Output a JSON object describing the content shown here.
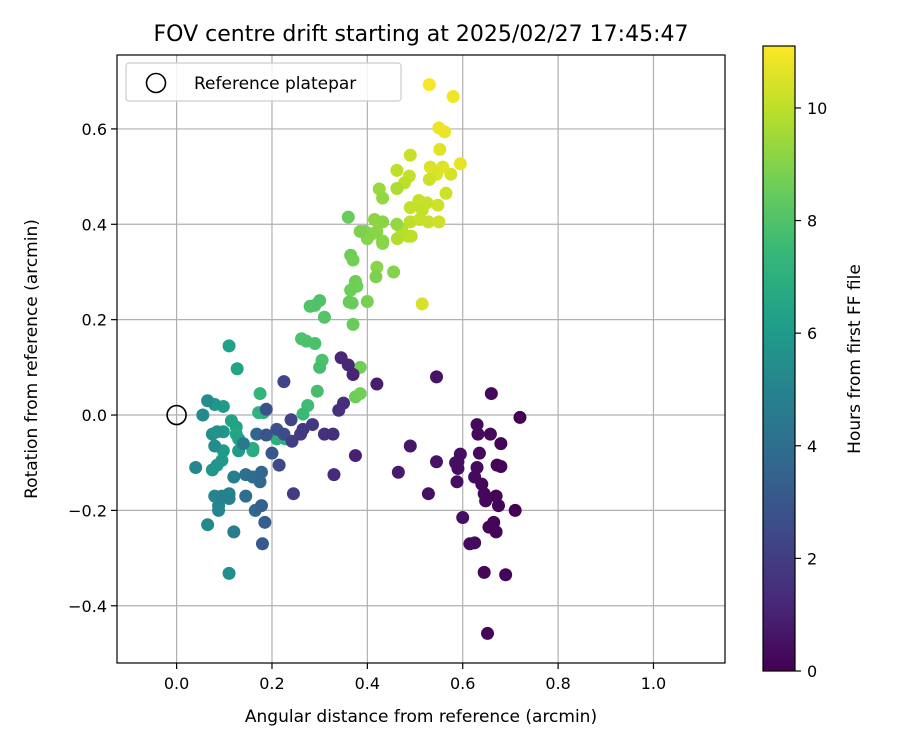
{
  "chart_data": {
    "type": "scatter",
    "title": "FOV centre drift starting at 2025/02/27 17:45:47",
    "xlabel": "Angular distance from reference (arcmin)",
    "ylabel": "Rotation from reference (arcmin)",
    "xlim": [
      -0.125,
      1.15
    ],
    "ylim": [
      -0.52,
      0.755
    ],
    "xticks": [
      0.0,
      0.2,
      0.4,
      0.6,
      0.8,
      1.0
    ],
    "xtick_labels": [
      "0.0",
      "0.2",
      "0.4",
      "0.6",
      "0.8",
      "1.0"
    ],
    "yticks": [
      -0.4,
      -0.2,
      0.0,
      0.2,
      0.4,
      0.6
    ],
    "ytick_labels": [
      "−0.4",
      "−0.2",
      "0.0",
      "0.2",
      "0.4",
      "0.6"
    ],
    "grid": true,
    "legend": {
      "position": "upper-left",
      "entries": [
        "Reference platepar"
      ]
    },
    "reference_point": {
      "x": 0.0,
      "y": 0.0,
      "marker": "open-circle"
    },
    "colorbar": {
      "label": "Hours from first FF file",
      "colormap": "viridis",
      "range": [
        0,
        11.1
      ],
      "ticks": [
        0,
        2,
        4,
        6,
        8,
        10
      ],
      "tick_labels": [
        "0",
        "2",
        "4",
        "6",
        "8",
        "10"
      ]
    },
    "points": [
      {
        "x": 0.53,
        "y": 0.693,
        "t": 11.0
      },
      {
        "x": 0.58,
        "y": 0.668,
        "t": 10.9
      },
      {
        "x": 0.55,
        "y": 0.602,
        "t": 10.8
      },
      {
        "x": 0.562,
        "y": 0.594,
        "t": 10.8
      },
      {
        "x": 0.595,
        "y": 0.527,
        "t": 10.7
      },
      {
        "x": 0.552,
        "y": 0.557,
        "t": 10.6
      },
      {
        "x": 0.532,
        "y": 0.52,
        "t": 10.5
      },
      {
        "x": 0.575,
        "y": 0.505,
        "t": 10.4
      },
      {
        "x": 0.558,
        "y": 0.52,
        "t": 10.6
      },
      {
        "x": 0.545,
        "y": 0.505,
        "t": 10.5
      },
      {
        "x": 0.53,
        "y": 0.494,
        "t": 10.3
      },
      {
        "x": 0.49,
        "y": 0.545,
        "t": 10.2
      },
      {
        "x": 0.462,
        "y": 0.513,
        "t": 10.0
      },
      {
        "x": 0.488,
        "y": 0.501,
        "t": 10.1
      },
      {
        "x": 0.478,
        "y": 0.487,
        "t": 10.0
      },
      {
        "x": 0.462,
        "y": 0.475,
        "t": 9.7
      },
      {
        "x": 0.565,
        "y": 0.465,
        "t": 10.3
      },
      {
        "x": 0.508,
        "y": 0.45,
        "t": 10.2
      },
      {
        "x": 0.525,
        "y": 0.445,
        "t": 10.2
      },
      {
        "x": 0.49,
        "y": 0.435,
        "t": 10.1
      },
      {
        "x": 0.548,
        "y": 0.44,
        "t": 10.3
      },
      {
        "x": 0.515,
        "y": 0.43,
        "t": 10.1
      },
      {
        "x": 0.49,
        "y": 0.405,
        "t": 10.0
      },
      {
        "x": 0.51,
        "y": 0.41,
        "t": 10.1
      },
      {
        "x": 0.528,
        "y": 0.405,
        "t": 10.2
      },
      {
        "x": 0.55,
        "y": 0.405,
        "t": 10.3
      },
      {
        "x": 0.485,
        "y": 0.375,
        "t": 10.0
      },
      {
        "x": 0.492,
        "y": 0.375,
        "t": 10.0
      },
      {
        "x": 0.463,
        "y": 0.37,
        "t": 9.8
      },
      {
        "x": 0.472,
        "y": 0.39,
        "t": 9.9
      },
      {
        "x": 0.515,
        "y": 0.233,
        "t": 10.4
      },
      {
        "x": 0.425,
        "y": 0.474,
        "t": 9.4
      },
      {
        "x": 0.432,
        "y": 0.455,
        "t": 9.3
      },
      {
        "x": 0.415,
        "y": 0.41,
        "t": 9.2
      },
      {
        "x": 0.432,
        "y": 0.405,
        "t": 9.1
      },
      {
        "x": 0.462,
        "y": 0.4,
        "t": 9.3
      },
      {
        "x": 0.42,
        "y": 0.385,
        "t": 9.2
      },
      {
        "x": 0.41,
        "y": 0.38,
        "t": 9.1
      },
      {
        "x": 0.395,
        "y": 0.385,
        "t": 9.0
      },
      {
        "x": 0.4,
        "y": 0.37,
        "t": 9.0
      },
      {
        "x": 0.432,
        "y": 0.365,
        "t": 9.1
      },
      {
        "x": 0.432,
        "y": 0.36,
        "t": 9.1
      },
      {
        "x": 0.42,
        "y": 0.31,
        "t": 9.1
      },
      {
        "x": 0.418,
        "y": 0.29,
        "t": 8.9
      },
      {
        "x": 0.455,
        "y": 0.3,
        "t": 9.0
      },
      {
        "x": 0.4,
        "y": 0.238,
        "t": 8.8
      },
      {
        "x": 0.385,
        "y": 0.385,
        "t": 8.9
      },
      {
        "x": 0.36,
        "y": 0.415,
        "t": 8.5
      },
      {
        "x": 0.365,
        "y": 0.335,
        "t": 8.6
      },
      {
        "x": 0.37,
        "y": 0.325,
        "t": 8.7
      },
      {
        "x": 0.375,
        "y": 0.28,
        "t": 8.6
      },
      {
        "x": 0.378,
        "y": 0.27,
        "t": 8.7
      },
      {
        "x": 0.365,
        "y": 0.262,
        "t": 8.6
      },
      {
        "x": 0.362,
        "y": 0.237,
        "t": 8.5
      },
      {
        "x": 0.368,
        "y": 0.235,
        "t": 8.5
      },
      {
        "x": 0.37,
        "y": 0.19,
        "t": 8.5
      },
      {
        "x": 0.375,
        "y": 0.038,
        "t": 8.6
      },
      {
        "x": 0.385,
        "y": 0.045,
        "t": 8.7
      },
      {
        "x": 0.385,
        "y": 0.1,
        "t": 8.7
      },
      {
        "x": 0.3,
        "y": 0.24,
        "t": 8.0
      },
      {
        "x": 0.29,
        "y": 0.23,
        "t": 8.0
      },
      {
        "x": 0.28,
        "y": 0.228,
        "t": 8.0
      },
      {
        "x": 0.31,
        "y": 0.205,
        "t": 8.1
      },
      {
        "x": 0.262,
        "y": 0.16,
        "t": 7.9
      },
      {
        "x": 0.272,
        "y": 0.155,
        "t": 7.9
      },
      {
        "x": 0.29,
        "y": 0.15,
        "t": 7.9
      },
      {
        "x": 0.305,
        "y": 0.115,
        "t": 7.9
      },
      {
        "x": 0.3,
        "y": 0.1,
        "t": 7.8
      },
      {
        "x": 0.295,
        "y": 0.05,
        "t": 7.8
      },
      {
        "x": 0.275,
        "y": 0.02,
        "t": 7.6
      },
      {
        "x": 0.265,
        "y": 0.002,
        "t": 7.5
      },
      {
        "x": 0.175,
        "y": 0.045,
        "t": 7.3
      },
      {
        "x": 0.172,
        "y": 0.005,
        "t": 7.2
      },
      {
        "x": 0.182,
        "y": 0.005,
        "t": 7.1
      },
      {
        "x": 0.22,
        "y": -0.045,
        "t": 7.0
      },
      {
        "x": 0.21,
        "y": -0.05,
        "t": 7.0
      },
      {
        "x": 0.228,
        "y": -0.05,
        "t": 7.0
      },
      {
        "x": 0.16,
        "y": -0.07,
        "t": 6.8
      },
      {
        "x": 0.16,
        "y": -0.075,
        "t": 6.8
      },
      {
        "x": 0.11,
        "y": 0.145,
        "t": 6.3
      },
      {
        "x": 0.127,
        "y": 0.097,
        "t": 6.4
      },
      {
        "x": 0.115,
        "y": -0.012,
        "t": 6.4
      },
      {
        "x": 0.125,
        "y": -0.025,
        "t": 6.4
      },
      {
        "x": 0.125,
        "y": -0.04,
        "t": 6.5
      },
      {
        "x": 0.13,
        "y": -0.05,
        "t": 6.4
      },
      {
        "x": 0.13,
        "y": -0.075,
        "t": 6.1
      },
      {
        "x": 0.098,
        "y": -0.075,
        "t": 6.1
      },
      {
        "x": 0.095,
        "y": -0.095,
        "t": 6.0
      },
      {
        "x": 0.085,
        "y": -0.105,
        "t": 5.9
      },
      {
        "x": 0.075,
        "y": -0.115,
        "t": 5.8
      },
      {
        "x": 0.098,
        "y": 0.018,
        "t": 6.1
      },
      {
        "x": 0.08,
        "y": 0.022,
        "t": 5.8
      },
      {
        "x": 0.098,
        "y": -0.035,
        "t": 5.8
      },
      {
        "x": 0.075,
        "y": -0.04,
        "t": 5.6
      },
      {
        "x": 0.085,
        "y": -0.035,
        "t": 5.7
      },
      {
        "x": 0.065,
        "y": 0.03,
        "t": 5.4
      },
      {
        "x": 0.055,
        "y": 0.0,
        "t": 5.3
      },
      {
        "x": 0.04,
        "y": -0.11,
        "t": 5.1
      },
      {
        "x": 0.08,
        "y": -0.065,
        "t": 5.4
      },
      {
        "x": 0.065,
        "y": -0.23,
        "t": 5.2
      },
      {
        "x": 0.11,
        "y": -0.332,
        "t": 5.5
      },
      {
        "x": 0.088,
        "y": -0.2,
        "t": 5.0
      },
      {
        "x": 0.088,
        "y": -0.19,
        "t": 5.0
      },
      {
        "x": 0.08,
        "y": -0.17,
        "t": 5.0
      },
      {
        "x": 0.095,
        "y": -0.17,
        "t": 4.9
      },
      {
        "x": 0.11,
        "y": -0.165,
        "t": 4.9
      },
      {
        "x": 0.11,
        "y": -0.175,
        "t": 4.9
      },
      {
        "x": 0.12,
        "y": -0.13,
        "t": 4.8
      },
      {
        "x": 0.14,
        "y": -0.06,
        "t": 4.5
      },
      {
        "x": 0.12,
        "y": -0.245,
        "t": 4.6
      },
      {
        "x": 0.145,
        "y": -0.17,
        "t": 4.0
      },
      {
        "x": 0.145,
        "y": -0.125,
        "t": 4.0
      },
      {
        "x": 0.16,
        "y": -0.13,
        "t": 3.9
      },
      {
        "x": 0.175,
        "y": -0.14,
        "t": 3.8
      },
      {
        "x": 0.178,
        "y": -0.12,
        "t": 3.7
      },
      {
        "x": 0.168,
        "y": -0.04,
        "t": 3.6
      },
      {
        "x": 0.165,
        "y": -0.2,
        "t": 3.7
      },
      {
        "x": 0.178,
        "y": -0.19,
        "t": 3.5
      },
      {
        "x": 0.185,
        "y": -0.225,
        "t": 3.3
      },
      {
        "x": 0.18,
        "y": -0.27,
        "t": 3.1
      },
      {
        "x": 0.2,
        "y": -0.08,
        "t": 3.0
      },
      {
        "x": 0.188,
        "y": -0.042,
        "t": 2.9
      },
      {
        "x": 0.188,
        "y": 0.012,
        "t": 2.8
      },
      {
        "x": 0.21,
        "y": -0.03,
        "t": 2.7
      },
      {
        "x": 0.225,
        "y": -0.04,
        "t": 2.6
      },
      {
        "x": 0.215,
        "y": -0.105,
        "t": 2.4
      },
      {
        "x": 0.225,
        "y": 0.07,
        "t": 2.3
      },
      {
        "x": 0.24,
        "y": -0.01,
        "t": 2.2
      },
      {
        "x": 0.242,
        "y": -0.055,
        "t": 2.1
      },
      {
        "x": 0.245,
        "y": -0.165,
        "t": 2.0
      },
      {
        "x": 0.26,
        "y": -0.04,
        "t": 1.9
      },
      {
        "x": 0.265,
        "y": -0.03,
        "t": 1.8
      },
      {
        "x": 0.285,
        "y": -0.02,
        "t": 1.8
      },
      {
        "x": 0.31,
        "y": -0.04,
        "t": 1.6
      },
      {
        "x": 0.328,
        "y": -0.04,
        "t": 1.5
      },
      {
        "x": 0.34,
        "y": 0.01,
        "t": 1.5
      },
      {
        "x": 0.35,
        "y": 0.025,
        "t": 1.4
      },
      {
        "x": 0.33,
        "y": -0.125,
        "t": 1.3
      },
      {
        "x": 0.345,
        "y": 0.12,
        "t": 1.2
      },
      {
        "x": 0.36,
        "y": 0.105,
        "t": 1.2
      },
      {
        "x": 0.37,
        "y": 0.085,
        "t": 1.1
      },
      {
        "x": 0.375,
        "y": -0.085,
        "t": 1.0
      },
      {
        "x": 0.42,
        "y": 0.065,
        "t": 0.9
      },
      {
        "x": 0.465,
        "y": -0.12,
        "t": 0.8
      },
      {
        "x": 0.49,
        "y": -0.065,
        "t": 0.7
      },
      {
        "x": 0.545,
        "y": 0.08,
        "t": 0.6
      },
      {
        "x": 0.545,
        "y": -0.098,
        "t": 0.6
      },
      {
        "x": 0.528,
        "y": -0.165,
        "t": 0.5
      },
      {
        "x": 0.585,
        "y": -0.1,
        "t": 0.5
      },
      {
        "x": 0.59,
        "y": -0.098,
        "t": 0.5
      },
      {
        "x": 0.595,
        "y": -0.082,
        "t": 0.4
      },
      {
        "x": 0.59,
        "y": -0.112,
        "t": 0.4
      },
      {
        "x": 0.588,
        "y": -0.14,
        "t": 0.4
      },
      {
        "x": 0.6,
        "y": -0.215,
        "t": 0.4
      },
      {
        "x": 0.615,
        "y": -0.27,
        "t": 0.3
      },
      {
        "x": 0.625,
        "y": -0.268,
        "t": 0.3
      },
      {
        "x": 0.63,
        "y": -0.02,
        "t": 0.3
      },
      {
        "x": 0.632,
        "y": -0.04,
        "t": 0.3
      },
      {
        "x": 0.635,
        "y": -0.08,
        "t": 0.3
      },
      {
        "x": 0.63,
        "y": -0.11,
        "t": 0.3
      },
      {
        "x": 0.625,
        "y": -0.13,
        "t": 0.3
      },
      {
        "x": 0.64,
        "y": -0.145,
        "t": 0.2
      },
      {
        "x": 0.645,
        "y": -0.165,
        "t": 0.2
      },
      {
        "x": 0.648,
        "y": -0.18,
        "t": 0.2
      },
      {
        "x": 0.655,
        "y": -0.235,
        "t": 0.2
      },
      {
        "x": 0.658,
        "y": -0.04,
        "t": 0.2
      },
      {
        "x": 0.66,
        "y": 0.045,
        "t": 0.2
      },
      {
        "x": 0.665,
        "y": -0.225,
        "t": 0.1
      },
      {
        "x": 0.67,
        "y": -0.245,
        "t": 0.1
      },
      {
        "x": 0.672,
        "y": -0.105,
        "t": 0.1
      },
      {
        "x": 0.68,
        "y": -0.108,
        "t": 0.1
      },
      {
        "x": 0.675,
        "y": -0.19,
        "t": 0.1
      },
      {
        "x": 0.68,
        "y": -0.06,
        "t": 0.1
      },
      {
        "x": 0.67,
        "y": -0.17,
        "t": 0.1
      },
      {
        "x": 0.69,
        "y": -0.335,
        "t": 0.1
      },
      {
        "x": 0.71,
        "y": -0.2,
        "t": 0.0
      },
      {
        "x": 0.72,
        "y": -0.005,
        "t": 0.0
      },
      {
        "x": 0.645,
        "y": -0.33,
        "t": 0.2
      },
      {
        "x": 0.652,
        "y": -0.458,
        "t": 0.2
      }
    ]
  }
}
